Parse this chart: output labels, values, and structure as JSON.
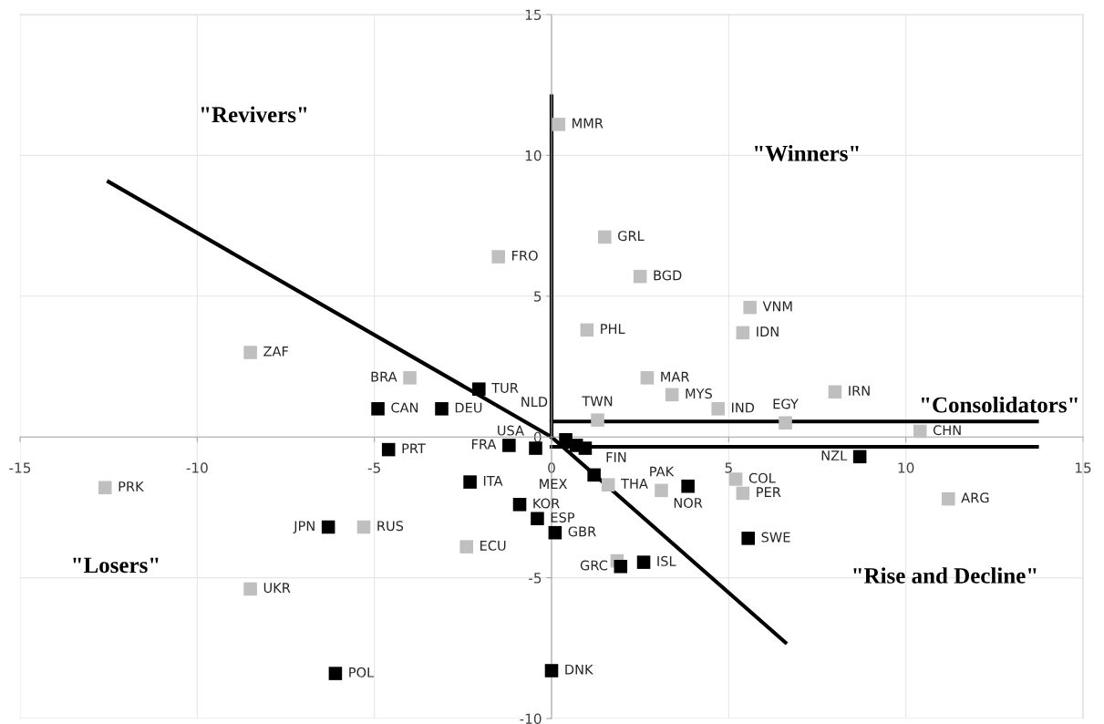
{
  "chart_data": {
    "type": "scatter",
    "marker": "square",
    "grid": true,
    "xlim": [
      -15,
      15
    ],
    "ylim": [
      -10,
      15
    ],
    "xticks": [
      -15,
      -10,
      -5,
      0,
      5,
      10,
      15
    ],
    "yticks": [
      -10,
      -5,
      0,
      5,
      10,
      15
    ],
    "series": [
      {
        "color": "#bfbfbf",
        "x": [
          0.2,
          1.5,
          -1.5,
          2.5,
          5.6,
          -8.5,
          1.0,
          5.4,
          -4.0,
          2.7,
          3.4,
          8.0,
          4.7,
          1.3,
          6.6,
          10.4,
          -12.6,
          5.2,
          1.6,
          3.1,
          5.4,
          11.2,
          -5.3,
          -2.4,
          1.85,
          -8.5
        ],
        "values": [
          11.1,
          7.1,
          6.4,
          5.7,
          4.6,
          3.0,
          3.8,
          3.7,
          2.1,
          2.1,
          1.5,
          1.6,
          1.0,
          0.6,
          0.5,
          0.2,
          -1.8,
          -1.5,
          -1.7,
          -1.9,
          -2.0,
          -2.2,
          -3.2,
          -3.9,
          -4.4,
          -5.4
        ]
      },
      {
        "color": "#000000",
        "x": [
          -2.05,
          -4.9,
          -3.1,
          -4.6,
          -1.2,
          -0.45,
          0.4,
          0.7,
          0.95,
          1.2,
          3.85,
          8.7,
          -2.3,
          -0.9,
          -0.4,
          0.1,
          -6.3,
          5.55,
          2.6,
          1.95,
          -6.1,
          0.0
        ],
        "values": [
          1.7,
          1.0,
          1.0,
          -0.45,
          -0.3,
          -0.4,
          -0.1,
          -0.3,
          -0.4,
          -1.35,
          -1.75,
          -0.7,
          -1.6,
          -2.4,
          -2.9,
          -3.4,
          -3.2,
          -3.6,
          -4.45,
          -4.6,
          -8.4,
          -8.3
        ]
      },
      {
        "type": "line",
        "color": "#000000",
        "marker": "none",
        "x": [
          0,
          0
        ],
        "values": [
          0,
          12.1
        ]
      },
      {
        "type": "line",
        "color": "#000000",
        "marker": "none",
        "x": [
          0,
          13.7
        ],
        "values": [
          0.55,
          0.55
        ]
      },
      {
        "type": "line",
        "color": "#000000",
        "marker": "none",
        "x": [
          0,
          13.7
        ],
        "values": [
          -0.35,
          -0.35
        ]
      },
      {
        "type": "line",
        "color": "#000000",
        "marker": "none",
        "x": [
          -12.5,
          0,
          6.6
        ],
        "values": [
          9.06,
          0,
          -7.3
        ]
      }
    ],
    "annotations": [
      {
        "text": "MMR",
        "x": 0.2,
        "y": 11.1
      },
      {
        "text": "GRL",
        "x": 1.5,
        "y": 7.1
      },
      {
        "text": "FRO",
        "x": -1.5,
        "y": 6.4
      },
      {
        "text": "BGD",
        "x": 2.5,
        "y": 5.7
      },
      {
        "text": "VNM",
        "x": 5.6,
        "y": 4.6
      },
      {
        "text": "ZAF",
        "x": -8.5,
        "y": 3.0
      },
      {
        "text": "PHL",
        "x": 1.0,
        "y": 3.8
      },
      {
        "text": "IDN",
        "x": 5.4,
        "y": 3.7
      },
      {
        "text": "BRA",
        "x": -4.0,
        "y": 2.1
      },
      {
        "text": "MAR",
        "x": 2.7,
        "y": 2.1
      },
      {
        "text": "MYS",
        "x": 3.4,
        "y": 1.5
      },
      {
        "text": "IRN",
        "x": 8.0,
        "y": 1.6
      },
      {
        "text": "IND",
        "x": 4.7,
        "y": 1.0
      },
      {
        "text": "TWN",
        "x": 1.3,
        "y": 0.6
      },
      {
        "text": "EGY",
        "x": 6.6,
        "y": 0.5
      },
      {
        "text": "CHN",
        "x": 10.4,
        "y": 0.2
      },
      {
        "text": "PRK",
        "x": -12.6,
        "y": -1.8
      },
      {
        "text": "COL",
        "x": 5.2,
        "y": -1.5
      },
      {
        "text": "THA",
        "x": 1.6,
        "y": -1.7
      },
      {
        "text": "PAK",
        "x": 3.1,
        "y": -1.9
      },
      {
        "text": "PER",
        "x": 5.4,
        "y": -2.0
      },
      {
        "text": "ARG",
        "x": 11.2,
        "y": -2.2
      },
      {
        "text": "RUS",
        "x": -5.3,
        "y": -3.2
      },
      {
        "text": "ECU",
        "x": -2.4,
        "y": -3.9
      },
      {
        "text": "UKR",
        "x": -8.5,
        "y": -5.4
      },
      {
        "text": "TUR",
        "x": -2.05,
        "y": 1.7
      },
      {
        "text": "CAN",
        "x": -4.9,
        "y": 1.0
      },
      {
        "text": "DEU",
        "x": -3.1,
        "y": 1.0
      },
      {
        "text": "PRT",
        "x": -4.6,
        "y": -0.45
      },
      {
        "text": "FRA",
        "x": -1.2,
        "y": -0.3
      },
      {
        "text": "USA",
        "x": -0.45,
        "y": -0.4
      },
      {
        "text": "NLD",
        "x": 0.4,
        "y": -0.1
      },
      {
        "text": "MEX",
        "x": 0.95,
        "y": -0.4
      },
      {
        "text": "FIN",
        "x": 1.2,
        "y": -1.35
      },
      {
        "text": "NOR",
        "x": 3.85,
        "y": -1.75
      },
      {
        "text": "NZL",
        "x": 8.7,
        "y": -0.7
      },
      {
        "text": "ITA",
        "x": -2.3,
        "y": -1.6
      },
      {
        "text": "KOR",
        "x": -0.9,
        "y": -2.4
      },
      {
        "text": "ESP",
        "x": -0.4,
        "y": -2.9
      },
      {
        "text": "GBR",
        "x": 0.1,
        "y": -3.4
      },
      {
        "text": "JPN",
        "x": -6.3,
        "y": -3.2
      },
      {
        "text": "SWE",
        "x": 5.55,
        "y": -3.6
      },
      {
        "text": "ISL",
        "x": 2.6,
        "y": -4.45
      },
      {
        "text": "GRC",
        "x": 1.95,
        "y": -4.6
      },
      {
        "text": "POL",
        "x": -6.1,
        "y": -8.4
      },
      {
        "text": "DNK",
        "x": 0.0,
        "y": -8.3
      },
      "\"Revivers\"",
      "\"Winners\"",
      "\"Consolidators\"",
      "\"Losers\"",
      "\"Rise and Decline\""
    ]
  }
}
